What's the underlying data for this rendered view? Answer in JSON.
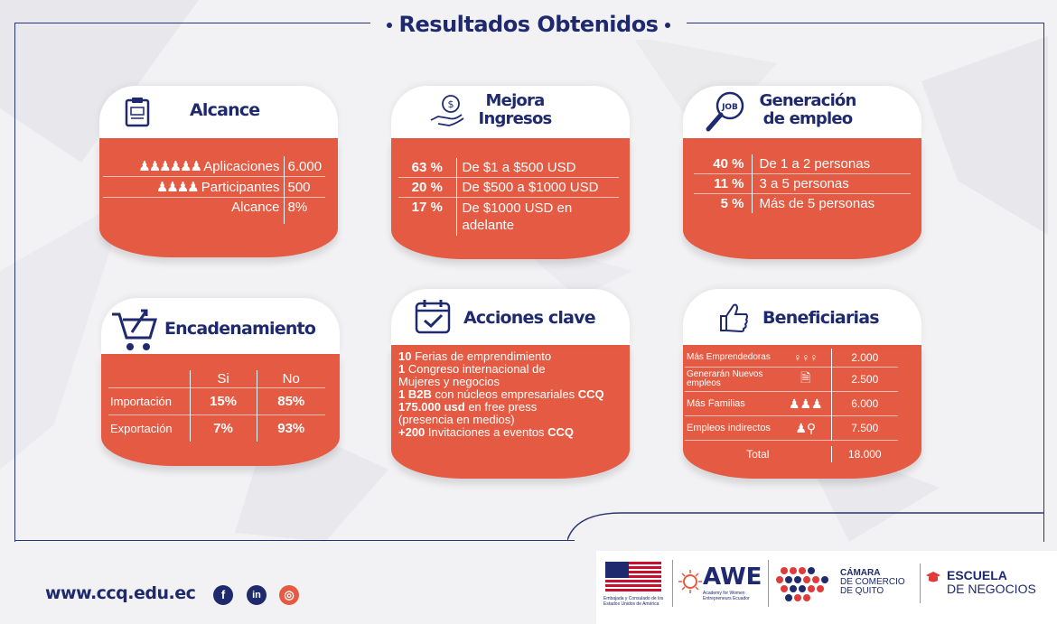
{
  "title": "Resultados Obtenidos",
  "colors": {
    "navy": "#1f2a6e",
    "coral": "#e55a42",
    "white": "#ffffff"
  },
  "alcance": {
    "title": "Alcance",
    "rows": [
      {
        "label": "Aplicaciones",
        "value": "6.000"
      },
      {
        "label": "Participantes",
        "value": "500"
      },
      {
        "label": "Alcance",
        "value": "8%"
      }
    ]
  },
  "ingresos": {
    "title_line1": "Mejora",
    "title_line2": "Ingresos",
    "rows": [
      {
        "pct": "63 %",
        "range": "De $1 a $500 USD"
      },
      {
        "pct": "20 %",
        "range": "De $500 a $1000 USD"
      },
      {
        "pct": "17 %",
        "range": "De $1000 USD en adelante"
      }
    ]
  },
  "empleo": {
    "title_line1": "Generación",
    "title_line2": "de empleo",
    "icon_text": "JOB",
    "rows": [
      {
        "pct": "40 %",
        "range": "De 1 a 2 personas"
      },
      {
        "pct": "11 %",
        "range": "3 a 5 personas"
      },
      {
        "pct": "5 %",
        "range": "Más de 5 personas"
      }
    ]
  },
  "encadenamiento": {
    "title": "Encadenamiento",
    "col_si": "Si",
    "col_no": "No",
    "rows": [
      {
        "label": "Importación",
        "si": "15%",
        "no": "85%"
      },
      {
        "label": "Exportación",
        "si": "7%",
        "no": "93%"
      }
    ]
  },
  "acciones": {
    "title": "Acciones clave",
    "items": [
      {
        "bold": "10",
        "text": " Ferias de emprendimiento",
        "bold2": ""
      },
      {
        "bold": "1",
        "text": " Congreso internacional de Mujeres y negocios",
        "bold2": ""
      },
      {
        "bold": "1 B2B",
        "text": " con núcleos empresariales ",
        "bold2": "CCQ"
      },
      {
        "bold": "175.000 usd",
        "text": " en free press (presencia en medios)",
        "bold2": ""
      },
      {
        "bold": "+200",
        "text": " Invitaciones a eventos ",
        "bold2": "CCQ"
      }
    ]
  },
  "beneficiarias": {
    "title": "Beneficiarias",
    "rows": [
      {
        "label": "Más Emprendedoras",
        "value": "2.000",
        "icon": "women-icon"
      },
      {
        "label": "Generarán Nuevos empleos",
        "value": "2.500",
        "icon": "document-icon"
      },
      {
        "label": "Más Familias",
        "value": "6.000",
        "icon": "family-icon"
      },
      {
        "label": "Empleos indirectos",
        "value": "7.500",
        "icon": "search-person-icon"
      }
    ],
    "total_label": "Total",
    "total_value": "18.000"
  },
  "footer": {
    "url": "www.ccq.edu.ec",
    "social": [
      "facebook-icon",
      "linkedin-icon",
      "instagram-icon"
    ],
    "logos": {
      "embassy": "Embajada y Consulado de los Estados Unidos de América",
      "awe": "AWE",
      "awe_sub": "Academy for Women Entrepreneurs Ecuador",
      "camara_l1": "CÁMARA",
      "camara_l2": "DE COMERCIO",
      "camara_l3": "DE QUITO",
      "escuela_l1": "ESCUELA",
      "escuela_l2": "DE NEGOCIOS"
    }
  }
}
